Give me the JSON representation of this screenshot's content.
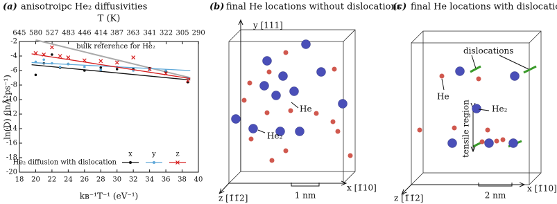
{
  "chart_data": {
    "type": "scatter",
    "panel_label": "(a)",
    "title": "anisotroipc He₂ diffusivities",
    "xlabel": "kʙ⁻¹T⁻¹ (eV⁻¹)",
    "ylabel": "ln(D) (lnÅ²ps⁻¹)",
    "x2label": "T (K)",
    "xlim": [
      18,
      40
    ],
    "xticks": [
      18,
      20,
      22,
      24,
      26,
      28,
      30,
      32,
      34,
      36,
      38,
      40
    ],
    "ylim": [
      -20,
      -2
    ],
    "yticks": [
      -20,
      -18,
      -16,
      -14,
      -12,
      -10,
      -8,
      -6,
      -4,
      -2
    ],
    "x2ticks": [
      645,
      580,
      527,
      483,
      446,
      414,
      387,
      363,
      341,
      322,
      305,
      290
    ],
    "legend_title": "He₂ diffusion with dislocation",
    "legend": "lower right",
    "x": [
      20,
      21,
      22,
      23,
      24,
      26,
      28,
      30,
      32,
      34,
      36,
      38.7
    ],
    "series": [
      {
        "name": "x",
        "color": "#111111",
        "marker": "dot",
        "values": [
          -6.6,
          -5.0,
          -3.8,
          -5.6,
          -5.1,
          -6.0,
          -5.6,
          -5.8,
          -5.8,
          -5.7,
          -6.1,
          -7.6
        ],
        "fit": {
          "x": [
            19.5,
            39
          ],
          "values": [
            -5.2,
            -7.3
          ]
        }
      },
      {
        "name": "y",
        "color": "#5fa8d8",
        "marker": "dot",
        "values": [
          -4.8,
          -4.5,
          -5.0,
          -5.5,
          -5.1,
          -5.5,
          -5.9,
          -5.5,
          -6.0,
          -5.9,
          -6.0,
          -7.0
        ],
        "fit": {
          "x": [
            19.5,
            39
          ],
          "values": [
            -4.9,
            -6.0
          ]
        }
      },
      {
        "name": "z",
        "color": "#d62020",
        "marker": "cross",
        "values": [
          -3.6,
          -3.8,
          -2.8,
          -4.0,
          -4.2,
          -4.6,
          -4.7,
          -4.9,
          -4.2,
          -5.8,
          -6.4,
          -7.4
        ],
        "fit": {
          "x": [
            19.5,
            39
          ],
          "values": [
            -3.7,
            -7.1
          ]
        }
      }
    ],
    "reference": {
      "label": "bulk reference for He₂",
      "color": "#aaaaaa",
      "x": [
        20,
        39
      ],
      "values": [
        -1.8,
        -7.0
      ]
    }
  },
  "panel_b": {
    "panel_label": "(b)",
    "title": "final He locations without dislocations",
    "y_axis": "y [111]",
    "x_axis": "x [1̄10]",
    "z_axis": "z [1̄1̄2]",
    "scale": "1 nm",
    "he_label": "He",
    "he2_label": "He₂"
  },
  "panel_c": {
    "panel_label": "(c)",
    "title": "final He locations with dislocations",
    "y_axis": "y [111]",
    "x_axis": "x [1̄10]",
    "z_axis": "z [1̄1̄2]",
    "scale": "2 nm",
    "he_label": "He",
    "he2_label": "He₂",
    "dislocations_label": "dislocations",
    "region_label": "tensile region"
  }
}
